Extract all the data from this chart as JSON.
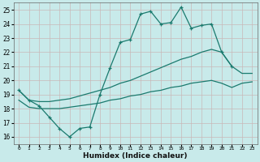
{
  "xlabel": "Humidex (Indice chaleur)",
  "bg_color": "#c8eaea",
  "grid_color": "#c8b8b8",
  "line_color": "#1a7a6e",
  "xlim": [
    -0.5,
    23.5
  ],
  "ylim": [
    15.5,
    25.5
  ],
  "yticks": [
    16,
    17,
    18,
    19,
    20,
    21,
    22,
    23,
    24,
    25
  ],
  "xticks": [
    0,
    1,
    2,
    3,
    4,
    5,
    6,
    7,
    8,
    9,
    10,
    11,
    12,
    13,
    14,
    15,
    16,
    17,
    18,
    19,
    20,
    21,
    22,
    23
  ],
  "line1_x": [
    0,
    1,
    2,
    3,
    4,
    5,
    6,
    7,
    8,
    9,
    10,
    11,
    12,
    13,
    14,
    15,
    16,
    17,
    18,
    19,
    20,
    21
  ],
  "line1_y": [
    19.3,
    18.6,
    18.2,
    17.4,
    16.6,
    16.0,
    16.6,
    16.7,
    19.0,
    20.9,
    22.7,
    22.9,
    24.7,
    24.9,
    24.0,
    24.1,
    25.2,
    23.7,
    23.9,
    24.0,
    22.0,
    21.0
  ],
  "line2_x": [
    0,
    1,
    2,
    3,
    4,
    5,
    6,
    7,
    8,
    9,
    10,
    11,
    12,
    13,
    14,
    15,
    16,
    17,
    18,
    19,
    20,
    21,
    22,
    23
  ],
  "line2_y": [
    19.3,
    18.6,
    18.5,
    18.5,
    18.6,
    18.7,
    18.9,
    19.1,
    19.3,
    19.5,
    19.8,
    20.0,
    20.3,
    20.6,
    20.9,
    21.2,
    21.5,
    21.7,
    22.0,
    22.2,
    22.0,
    21.0,
    20.5,
    20.5
  ],
  "line3_x": [
    0,
    1,
    2,
    3,
    4,
    5,
    6,
    7,
    8,
    9,
    10,
    11,
    12,
    13,
    14,
    15,
    16,
    17,
    18,
    19,
    20,
    21,
    22,
    23
  ],
  "line3_y": [
    18.6,
    18.1,
    18.0,
    18.0,
    18.0,
    18.1,
    18.2,
    18.3,
    18.4,
    18.6,
    18.7,
    18.9,
    19.0,
    19.2,
    19.3,
    19.5,
    19.6,
    19.8,
    19.9,
    20.0,
    19.8,
    19.5,
    19.8,
    19.9
  ]
}
